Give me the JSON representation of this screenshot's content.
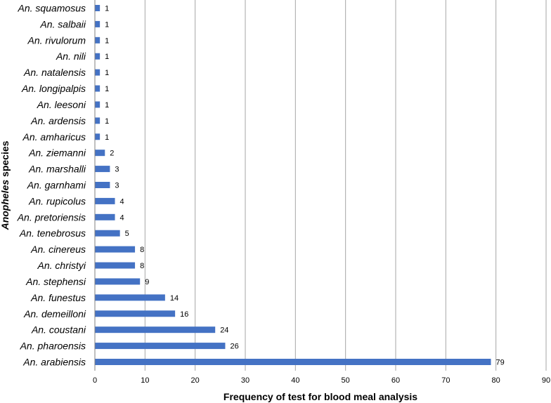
{
  "chart_data": {
    "type": "bar",
    "orientation": "horizontal",
    "categories": [
      "An. squamosus",
      "An. salbaii",
      "An. rivulorum",
      "An. nili",
      "An. natalensis",
      "An. longipalpis",
      "An. leesoni",
      "An. ardensis",
      "An. amharicus",
      "An. ziemanni",
      "An. marshalli",
      "An. garnhami",
      "An. rupicolus",
      "An. pretoriensis",
      "An. tenebrosus",
      "An. cinereus",
      "An. christyi",
      "An. stephensi",
      "An. funestus",
      "An. demeilloni",
      "An. coustani",
      "An. pharoensis",
      "An. arabiensis"
    ],
    "values": [
      1,
      1,
      1,
      1,
      1,
      1,
      1,
      1,
      1,
      2,
      3,
      3,
      4,
      4,
      5,
      8,
      8,
      9,
      14,
      16,
      24,
      26,
      79
    ],
    "xlabel": "Frequency of test for blood meal analysis",
    "ylabel_italic": "Anopheles",
    "ylabel_rest": " species",
    "xlim": [
      0,
      90
    ],
    "xticks": [
      0,
      10,
      20,
      30,
      40,
      50,
      60,
      70,
      80,
      90
    ],
    "grid": "vertical",
    "bar_color": "#4472C4",
    "grid_color": "#A6A6A6",
    "data_labels": true
  }
}
